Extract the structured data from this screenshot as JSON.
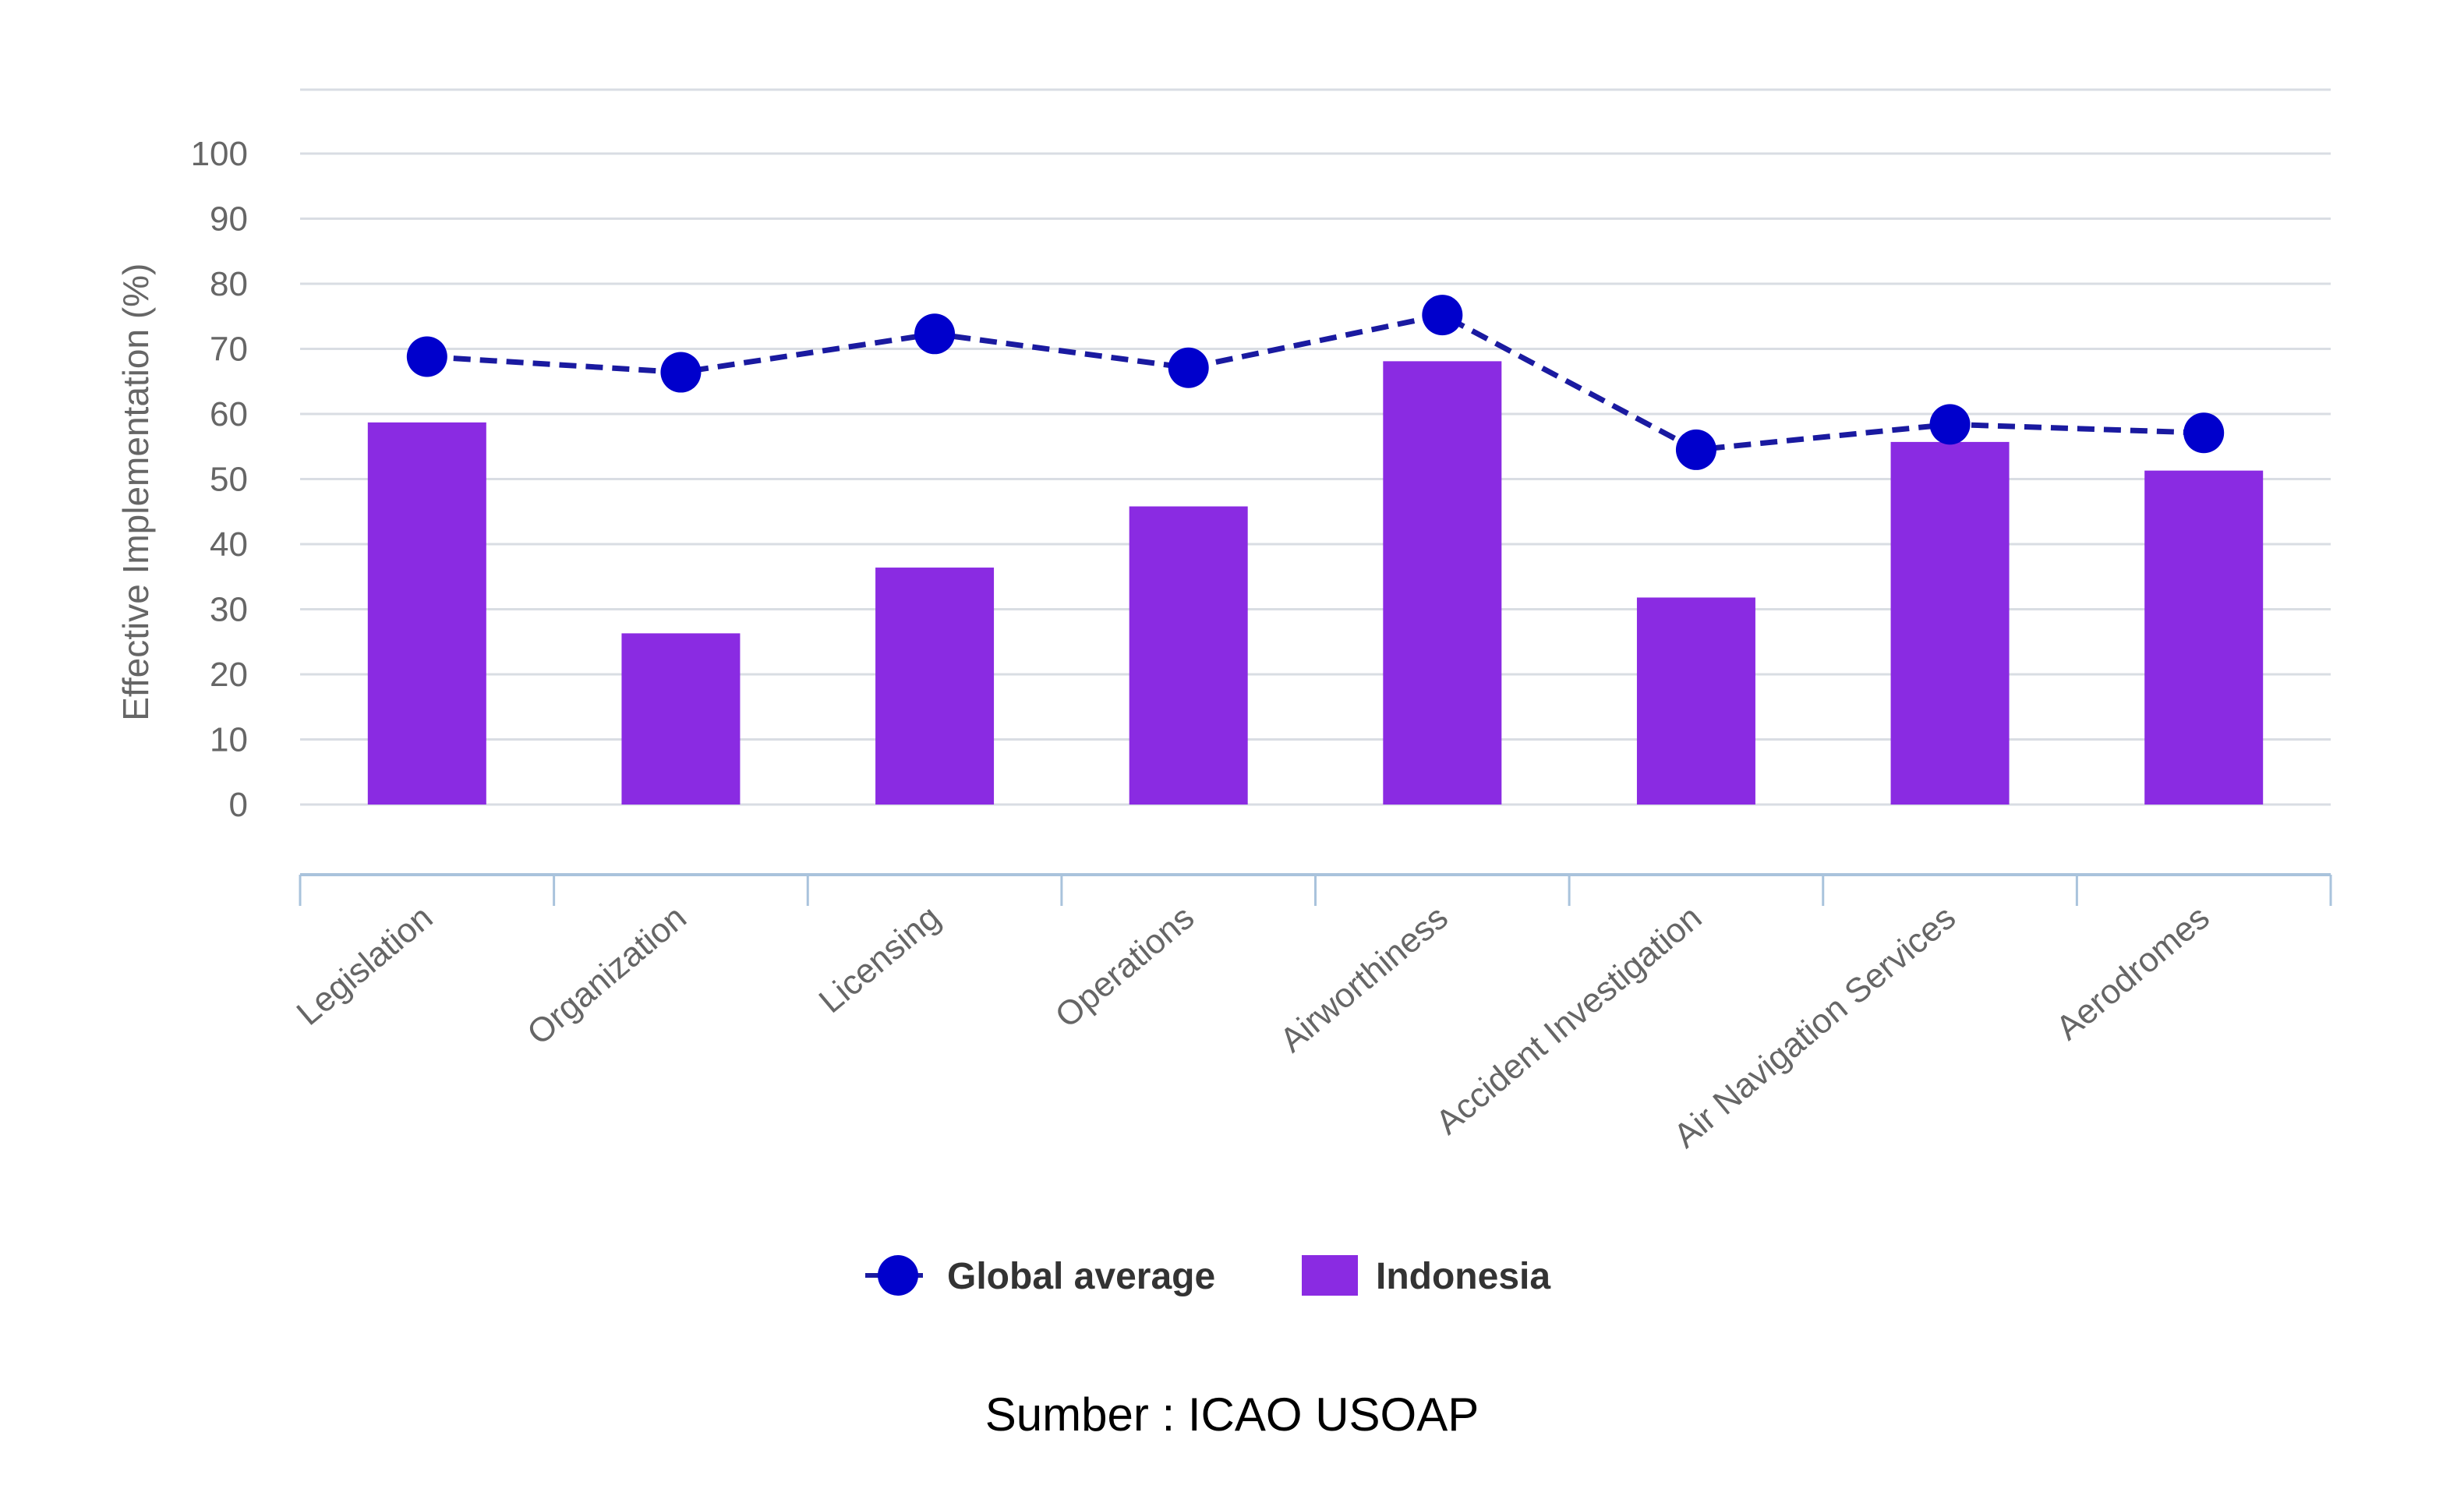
{
  "caption": "Sumber : ICAO USOAP",
  "colors": {
    "bar": "#8a2be2",
    "line": "#0000cc",
    "grid": "#d9dde3",
    "axis": "#a9c3dc",
    "tick_text": "#666666"
  },
  "chart_data": {
    "type": "bar",
    "categories": [
      "Legislation",
      "Organization",
      "Licensing",
      "Operations",
      "Airworthiness",
      "Accident Investigation",
      "Air Navigation Services",
      "Aerodromes"
    ],
    "series": [
      {
        "name": "Indonesia",
        "type": "bar",
        "values": [
          58.7,
          26.3,
          36.4,
          45.8,
          68.1,
          31.8,
          55.7,
          51.3
        ]
      },
      {
        "name": "Global average",
        "type": "line",
        "values": [
          68.8,
          66.4,
          72.3,
          67.1,
          75.2,
          54.5,
          58.4,
          57.1
        ]
      }
    ],
    "ylabel": "Effective Implementation (%)",
    "xlabel": "",
    "ylim": [
      0,
      100
    ],
    "yticks": [
      0,
      10,
      20,
      30,
      40,
      50,
      60,
      70,
      80,
      90,
      100
    ],
    "grid": true,
    "legend": {
      "position": "bottom-center",
      "items": [
        "Global average",
        "Indonesia"
      ]
    }
  }
}
